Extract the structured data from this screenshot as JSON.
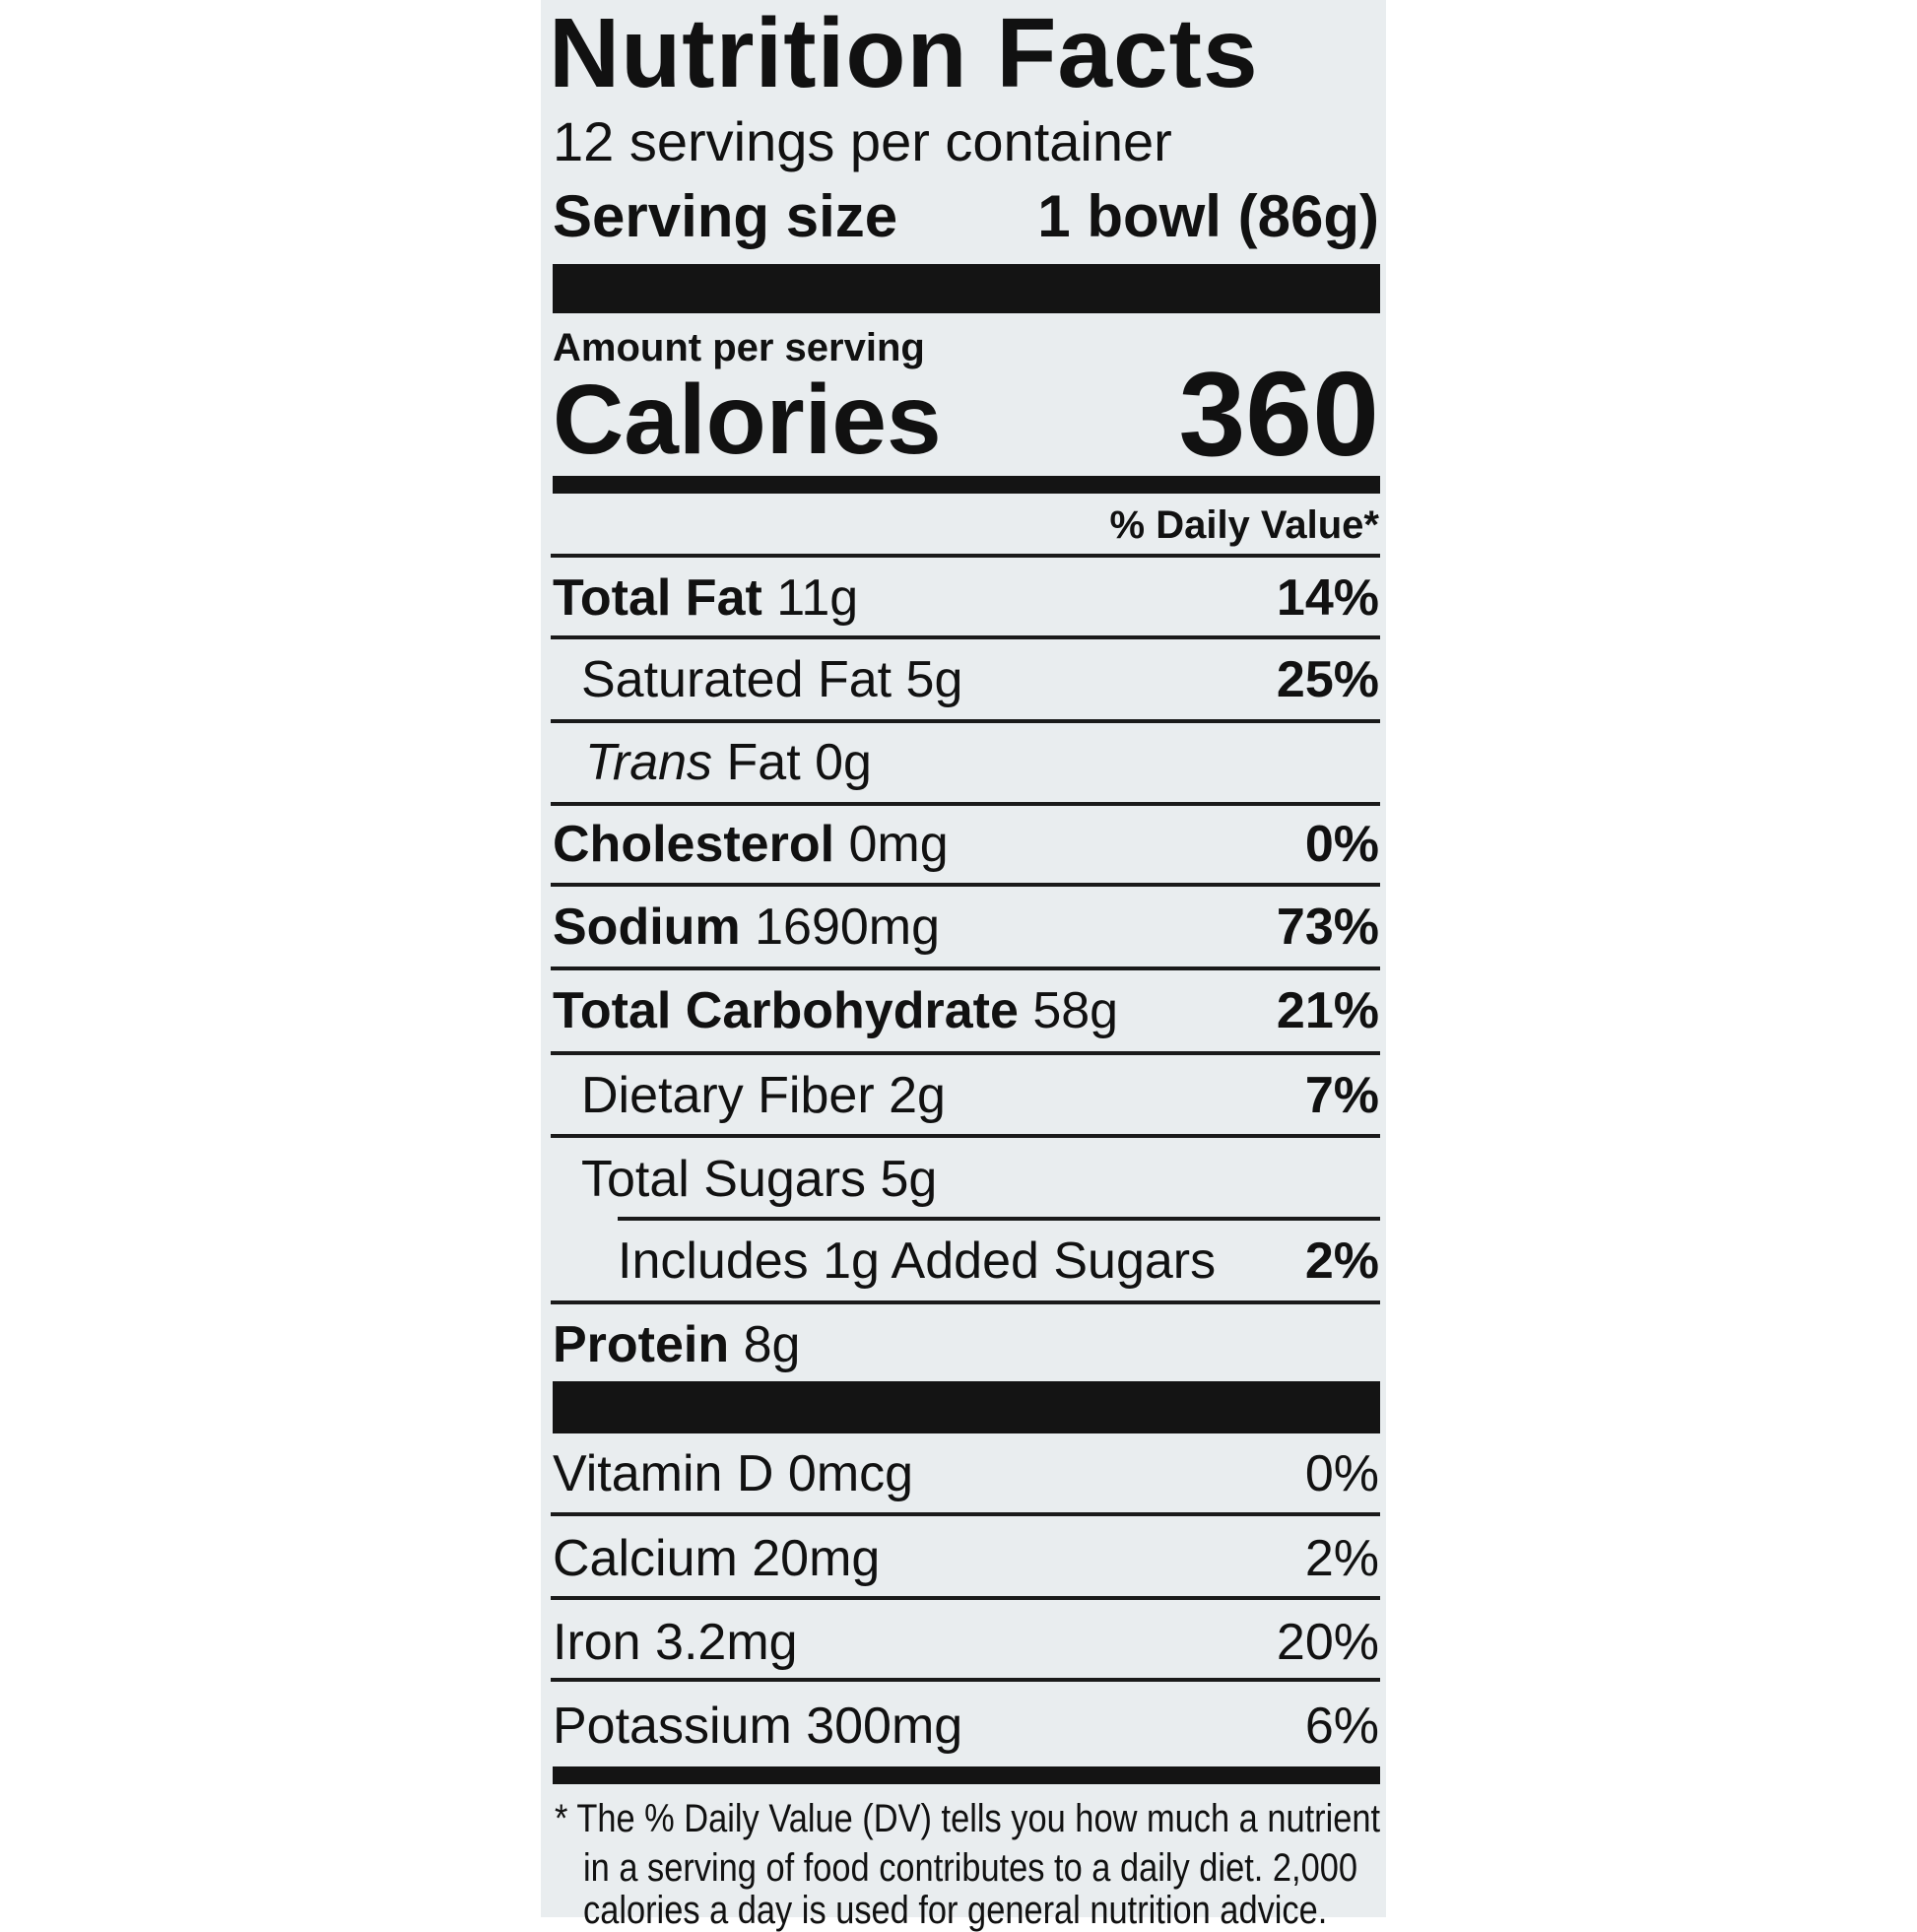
{
  "title": "Nutrition Facts",
  "servings_per_container": "12 servings per container",
  "serving_size_label": "Serving size",
  "serving_size_value": "1 bowl (86g)",
  "amount_per_serving": "Amount per serving",
  "calories_label": "Calories",
  "calories_value": "360",
  "daily_value_header": "% Daily Value*",
  "nutrients": [
    {
      "name": "Total Fat",
      "amount": "11g",
      "dv": "14%"
    },
    {
      "name": "Saturated Fat",
      "amount": "5g",
      "dv": "25%"
    },
    {
      "name": "Trans",
      "name_suffix": "Fat",
      "amount": "0g",
      "dv": ""
    },
    {
      "name": "Cholesterol",
      "amount": "0mg",
      "dv": "0%"
    },
    {
      "name": "Sodium",
      "amount": "1690mg",
      "dv": "73%"
    },
    {
      "name": "Total Carbohydrate",
      "amount": "58g",
      "dv": "21%"
    },
    {
      "name": "Dietary Fiber",
      "amount": "2g",
      "dv": "7%"
    },
    {
      "name": "Total Sugars",
      "amount": "5g",
      "dv": ""
    },
    {
      "name": "Includes 1g Added Sugars",
      "amount": "",
      "dv": "2%"
    },
    {
      "name": "Protein",
      "amount": "8g",
      "dv": ""
    }
  ],
  "vitamins": [
    {
      "label": "Vitamin D 0mcg",
      "dv": "0%"
    },
    {
      "label": "Calcium 20mg",
      "dv": "2%"
    },
    {
      "label": "Iron 3.2mg",
      "dv": "20%"
    },
    {
      "label": "Potassium 300mg",
      "dv": "6%"
    }
  ],
  "footnote": [
    "* The % Daily Value (DV) tells you how much a nutrient",
    "in a serving of food contributes to a daily diet. 2,000",
    "calories a day is used for general nutrition advice."
  ]
}
